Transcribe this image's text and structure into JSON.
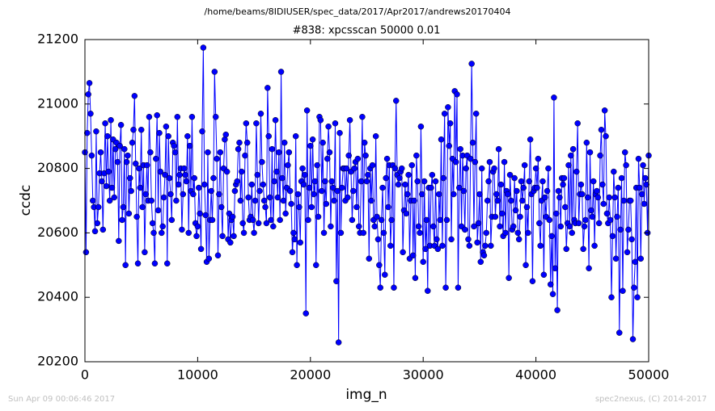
{
  "chart_data": {
    "type": "line",
    "suptitle": "/home/beams/8IDIUSER/spec_data/2017/Apr2017/andrews20170404",
    "title": "#838: xpcsscan 50000 0.01",
    "xlabel": "img_n",
    "ylabel": "ccdc",
    "footer_left": "Sun Apr 09 00:06:46 2017",
    "footer_right": "spec2nexus, (C) 2014-2017",
    "xlim": [
      0,
      50000
    ],
    "ylim": [
      20200,
      21200
    ],
    "xticks": [
      0,
      10000,
      20000,
      30000,
      40000,
      50000
    ],
    "yticks": [
      20200,
      20400,
      20600,
      20800,
      21000,
      21200
    ],
    "grid": false,
    "x": [
      0,
      100,
      200,
      300,
      400,
      500,
      600,
      700,
      800,
      900,
      1000,
      1100,
      1200,
      1300,
      1400,
      1500,
      1600,
      1700,
      1800,
      1900,
      2000,
      2100,
      2200,
      2300,
      2400,
      2500,
      2600,
      2700,
      2800,
      2900,
      3000,
      3100,
      3200,
      3300,
      3400,
      3500,
      3600,
      3700,
      3800,
      3900,
      4000,
      4100,
      4200,
      4300,
      4400,
      4500,
      4600,
      4700,
      4800,
      4900,
      5000,
      5100,
      5200,
      5300,
      5400,
      5500,
      5600,
      5700,
      5800,
      5900,
      6000,
      6100,
      6200,
      6300,
      6400,
      6500,
      6600,
      6700,
      6800,
      6900,
      7000,
      7100,
      7200,
      7300,
      7400,
      7500,
      7600,
      7700,
      7800,
      7900,
      8000,
      8100,
      8200,
      8300,
      8400,
      8500,
      8600,
      8700,
      8800,
      8900,
      9000,
      9100,
      9200,
      9300,
      9400,
      9500,
      9600,
      9700,
      9800,
      9900,
      10000,
      10100,
      10200,
      10300,
      10400,
      10500,
      10600,
      10700,
      10800,
      10900,
      11000,
      11100,
      11200,
      11300,
      11400,
      11500,
      11600,
      11700,
      11800,
      11900,
      12000,
      12100,
      12200,
      12300,
      12400,
      12500,
      12600,
      12700,
      12800,
      12900,
      13000,
      13100,
      13200,
      13300,
      13400,
      13500,
      13600,
      13700,
      13800,
      13900,
      14000,
      14100,
      14200,
      14300,
      14400,
      14500,
      14600,
      14700,
      14800,
      14900,
      15000,
      15100,
      15200,
      15300,
      15400,
      15500,
      15600,
      15700,
      15800,
      15900,
      16000,
      16100,
      16200,
      16300,
      16400,
      16500,
      16600,
      16700,
      16800,
      16900,
      17000,
      17100,
      17200,
      17300,
      17400,
      17500,
      17600,
      17700,
      17800,
      17900,
      18000,
      18100,
      18200,
      18300,
      18400,
      18500,
      18600,
      18700,
      18800,
      18900,
      19000,
      19100,
      19200,
      19300,
      19400,
      19500,
      19600,
      19700,
      19800,
      19900,
      20000,
      20100,
      20200,
      20300,
      20400,
      20500,
      20600,
      20700,
      20800,
      20900,
      21000,
      21100,
      21200,
      21300,
      21400,
      21500,
      21600,
      21700,
      21800,
      21900,
      22000,
      22100,
      22200,
      22300,
      22400,
      22500,
      22600,
      22700,
      22800,
      22900,
      23000,
      23100,
      23200,
      23300,
      23400,
      23500,
      23600,
      23700,
      23800,
      23900,
      24000,
      24100,
      24200,
      24300,
      24400,
      24500,
      24600,
      24700,
      24800,
      24900,
      25000,
      25100,
      25200,
      25300,
      25400,
      25500,
      25600,
      25700,
      25800,
      25900,
      26000,
      26100,
      26200,
      26300,
      26400,
      26500,
      26600,
      26700,
      26800,
      26900,
      27000,
      27100,
      27200,
      27300,
      27400,
      27500,
      27600,
      27700,
      27800,
      27900,
      28000,
      28100,
      28200,
      28300,
      28400,
      28500,
      28600,
      28700,
      28800,
      28900,
      29000,
      29100,
      29200,
      29300,
      29400,
      29500,
      29600,
      29700,
      29800,
      29900,
      30000,
      30100,
      30200,
      30300,
      30400,
      30500,
      30600,
      30700,
      30800,
      30900,
      31000,
      31100,
      31200,
      31300,
      31400,
      31500,
      31600,
      31700,
      31800,
      31900,
      32000,
      32100,
      32200,
      32300,
      32400,
      32500,
      32600,
      32700,
      32800,
      32900,
      33000,
      33100,
      33200,
      33300,
      33400,
      33500,
      33600,
      33700,
      33800,
      33900,
      34000,
      34100,
      34200,
      34300,
      34400,
      34500,
      34600,
      34700,
      34800,
      34900,
      35000,
      35100,
      35200,
      35300,
      35400,
      35500,
      35600,
      35700,
      35800,
      35900,
      36000,
      36100,
      36200,
      36300,
      36400,
      36500,
      36600,
      36700,
      36800,
      36900,
      37000,
      37100,
      37200,
      37300,
      37400,
      37500,
      37600,
      37700,
      37800,
      37900,
      38000,
      38100,
      38200,
      38300,
      38400,
      38500,
      38600,
      38700,
      38800,
      38900,
      39000,
      39100,
      39200,
      39300,
      39400,
      39500,
      39600,
      39700,
      39800,
      39900,
      40000,
      40100,
      40200,
      40300,
      40400,
      40500,
      40600,
      40700,
      40800,
      40900,
      41000,
      41100,
      41200,
      41300,
      41400,
      41500,
      41600,
      41700,
      41800,
      41900,
      42000,
      42100,
      42200,
      42300,
      42400,
      42500,
      42600,
      42700,
      42800,
      42900,
      43000,
      43100,
      43200,
      43300,
      43400,
      43500,
      43600,
      43700,
      43800,
      43900,
      44000,
      44100,
      44200,
      44300,
      44400,
      44500,
      44600,
      44700,
      44800,
      44900,
      45000,
      45100,
      45200,
      45300,
      45400,
      45500,
      45600,
      45700,
      45800,
      45900,
      46000,
      46100,
      46200,
      46300,
      46400,
      46500,
      46600,
      46700,
      46800,
      46900,
      47000,
      47100,
      47200,
      47300,
      47400,
      47500,
      47600,
      47700,
      47800,
      47900,
      48000,
      48100,
      48200,
      48300,
      48400,
      48500,
      48600,
      48700,
      48800,
      48900,
      49000,
      49100,
      49200,
      49300,
      49400,
      49500,
      49600,
      49700,
      49800,
      49900,
      50000
    ],
    "series": [
      {
        "color": "#0000ff",
        "values": [
          20850,
          20540,
          20910,
          21030,
          21065,
          20970,
          20840,
          20700,
          20680,
          20605,
          20915,
          20630,
          20680,
          20785,
          20850,
          20760,
          20610,
          20785,
          20940,
          20745,
          20900,
          20790,
          20700,
          20950,
          20740,
          20890,
          20710,
          20860,
          20880,
          20820,
          20575,
          20870,
          20935,
          20640,
          20680,
          20860,
          20500,
          20820,
          20840,
          20660,
          20770,
          20730,
          20880,
          20920,
          21025,
          20815,
          20650,
          20505,
          20800,
          20740,
          20920,
          20680,
          20810,
          20540,
          20720,
          20810,
          20700,
          20960,
          20850,
          20700,
          20630,
          20600,
          20505,
          20830,
          20965,
          20670,
          20910,
          20790,
          20600,
          20620,
          20710,
          20780,
          20930,
          20505,
          20900,
          20770,
          20720,
          20640,
          20880,
          20870,
          20850,
          20700,
          20960,
          20750,
          20780,
          20800,
          20610,
          20720,
          20800,
          20780,
          20760,
          20900,
          20600,
          20870,
          20730,
          20960,
          20720,
          20770,
          20630,
          20590,
          20620,
          20740,
          20660,
          20550,
          20915,
          21175,
          20750,
          20655,
          20510,
          20850,
          20520,
          20640,
          20730,
          20640,
          20770,
          21100,
          20960,
          20830,
          20530,
          20720,
          20850,
          20680,
          20590,
          20800,
          20890,
          20905,
          20790,
          20580,
          20660,
          20570,
          20640,
          20650,
          20590,
          20730,
          20750,
          20760,
          20860,
          20880,
          20700,
          20790,
          20630,
          20600,
          20840,
          20940,
          20880,
          20710,
          20640,
          20650,
          20750,
          20640,
          20600,
          20700,
          20940,
          20780,
          20630,
          20730,
          20970,
          20820,
          20750,
          20700,
          20680,
          20630,
          21050,
          20900,
          20710,
          20640,
          20860,
          20620,
          20760,
          20950,
          20790,
          20710,
          20850,
          20640,
          21100,
          20770,
          20700,
          20880,
          20660,
          20740,
          20810,
          20850,
          20730,
          20690,
          20540,
          20600,
          20580,
          20900,
          20500,
          20720,
          20680,
          20570,
          20760,
          20800,
          20750,
          20780,
          20350,
          20980,
          20640,
          20740,
          20870,
          20680,
          20890,
          20720,
          20760,
          20500,
          20810,
          20650,
          20960,
          20950,
          20730,
          20880,
          20600,
          20760,
          20690,
          20830,
          20930,
          20850,
          20620,
          20760,
          20740,
          20700,
          20940,
          20450,
          20730,
          20260,
          20910,
          20600,
          20740,
          20800,
          20800,
          20700,
          20800,
          20710,
          20840,
          20950,
          20790,
          20640,
          20730,
          20800,
          20820,
          20680,
          20830,
          20620,
          20600,
          20760,
          20960,
          20600,
          20880,
          20840,
          20760,
          20780,
          20520,
          20800,
          20700,
          20810,
          20640,
          20620,
          20900,
          20650,
          20580,
          20500,
          20430,
          20640,
          20740,
          20600,
          20470,
          20770,
          20830,
          20680,
          20810,
          20560,
          20640,
          20810,
          20430,
          20800,
          21010,
          20780,
          20750,
          20770,
          20790,
          20800,
          20540,
          20670,
          20750,
          20660,
          20720,
          20780,
          20520,
          20700,
          20810,
          20530,
          20700,
          20460,
          20840,
          20760,
          20620,
          20600,
          20930,
          20720,
          20510,
          20760,
          20550,
          20640,
          20420,
          20740,
          20560,
          20740,
          20780,
          20620,
          20560,
          20760,
          20580,
          20550,
          20720,
          20640,
          20890,
          20560,
          20770,
          20970,
          20430,
          20640,
          20990,
          20870,
          20940,
          20580,
          20830,
          20720,
          21040,
          20820,
          21030,
          20430,
          20740,
          20860,
          20620,
          20840,
          20730,
          20610,
          20800,
          20840,
          20580,
          20560,
          20830,
          21125,
          20880,
          20620,
          20820,
          20970,
          20570,
          20630,
          20720,
          20510,
          20800,
          20540,
          20530,
          20560,
          20600,
          20700,
          20760,
          20820,
          20560,
          20650,
          20790,
          20800,
          20650,
          20720,
          20700,
          20860,
          20620,
          20750,
          20660,
          20590,
          20820,
          20600,
          20730,
          20720,
          20460,
          20780,
          20700,
          20610,
          20620,
          20770,
          20670,
          20730,
          20600,
          20580,
          20650,
          20760,
          20700,
          20740,
          20810,
          20500,
          20680,
          20600,
          20760,
          20890,
          20720,
          20450,
          20730,
          20740,
          20800,
          20740,
          20830,
          20630,
          20560,
          20700,
          20760,
          20470,
          20710,
          20650,
          20730,
          20800,
          20640,
          20440,
          20590,
          20410,
          21020,
          20490,
          20660,
          20360,
          20730,
          20710,
          20620,
          20770,
          20750,
          20770,
          20680,
          20550,
          20630,
          20810,
          20620,
          20840,
          20600,
          20860,
          20640,
          20630,
          20790,
          20940,
          20630,
          20720,
          20750,
          20720,
          20550,
          20620,
          20640,
          20880,
          20710,
          20490,
          20850,
          20670,
          20650,
          20760,
          20560,
          20720,
          20730,
          20710,
          20630,
          20840,
          20920,
          20750,
          20690,
          20980,
          20900,
          20660,
          20630,
          20710,
          20640,
          20400,
          20590,
          20790,
          20710,
          20520,
          20650,
          20740,
          20290,
          20610,
          20770,
          20420,
          20700,
          20850,
          20810,
          20540,
          20610,
          20700,
          20700,
          20580,
          20270,
          20430,
          20510,
          20740,
          20400,
          20830,
          20740,
          20520,
          20720,
          20810,
          20690,
          20770,
          20750,
          20600,
          20840
        ]
      }
    ]
  }
}
